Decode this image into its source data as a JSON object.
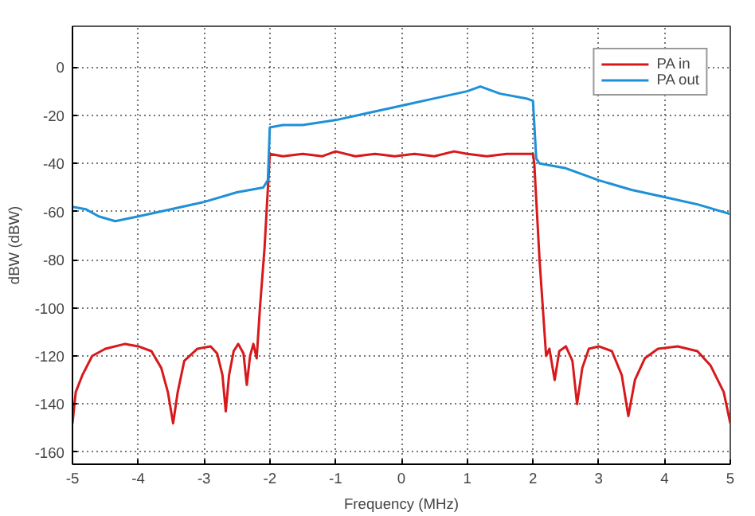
{
  "chart_data": {
    "type": "line",
    "xlabel": "Frequency (MHz)",
    "ylabel": "dBW (dBW)",
    "xlim": [
      -5,
      5
    ],
    "xticks": [
      -5,
      -4,
      -3,
      -2,
      -1,
      0,
      1,
      2,
      3,
      4,
      5
    ],
    "ylim": [
      -165,
      17
    ],
    "yticks": [
      -160,
      -140,
      -120,
      -100,
      -80,
      -60,
      -40,
      -20,
      0
    ],
    "grid": true,
    "legend": "top right",
    "line_style": "solid",
    "series": [
      {
        "name": "PA in",
        "color": "#d7191c",
        "x": [
          -5,
          -4.95,
          -4.85,
          -4.7,
          -4.5,
          -4.2,
          -4,
          -3.8,
          -3.65,
          -3.55,
          -3.47,
          -3.4,
          -3.3,
          -3.1,
          -2.9,
          -2.8,
          -2.72,
          -2.67,
          -2.62,
          -2.55,
          -2.48,
          -2.4,
          -2.35,
          -2.3,
          -2.25,
          -2.2,
          -2.15,
          -2.08,
          -2,
          -1.8,
          -1.5,
          -1.2,
          -1,
          -0.7,
          -0.4,
          -0.1,
          0.2,
          0.5,
          0.8,
          1,
          1.3,
          1.6,
          1.9,
          2,
          2.02,
          2.1,
          2.2,
          2.25,
          2.33,
          2.4,
          2.5,
          2.6,
          2.67,
          2.75,
          2.85,
          3,
          3.2,
          3.35,
          3.45,
          3.55,
          3.7,
          3.9,
          4.2,
          4.5,
          4.7,
          4.9,
          5
        ],
        "values": [
          -148,
          -135,
          -128,
          -120,
          -117,
          -115,
          -116,
          -118,
          -125,
          -135,
          -148,
          -135,
          -122,
          -117,
          -116,
          -119,
          -128,
          -143,
          -128,
          -118,
          -115,
          -119,
          -132,
          -120,
          -115,
          -121,
          -100,
          -75,
          -36,
          -37,
          -36,
          -37,
          -35,
          -37,
          -36,
          -37,
          -36,
          -37,
          -35,
          -36,
          -37,
          -36,
          -36,
          -36,
          -40,
          -80,
          -120,
          -117,
          -130,
          -118,
          -116,
          -122,
          -140,
          -125,
          -117,
          -116,
          -118,
          -128,
          -145,
          -130,
          -121,
          -117,
          -116,
          -118,
          -124,
          -135,
          -148
        ]
      },
      {
        "name": "PA out",
        "color": "#1e90d8",
        "x": [
          -5,
          -4.8,
          -4.6,
          -4.35,
          -4,
          -3.5,
          -3,
          -2.5,
          -2.1,
          -2.03,
          -2,
          -1.8,
          -1.5,
          -1,
          -0.5,
          0,
          0.5,
          1,
          1.2,
          1.5,
          1.9,
          2,
          2.05,
          2.1,
          2.5,
          3,
          3.5,
          4,
          4.5,
          5
        ],
        "values": [
          -58,
          -59,
          -62,
          -64,
          -62,
          -59,
          -56,
          -52,
          -50,
          -47,
          -25,
          -24,
          -24,
          -22,
          -19,
          -16,
          -13,
          -10,
          -8,
          -11,
          -13,
          -14,
          -38,
          -40,
          -42,
          -47,
          -51,
          -54,
          -57,
          -61
        ]
      }
    ]
  }
}
